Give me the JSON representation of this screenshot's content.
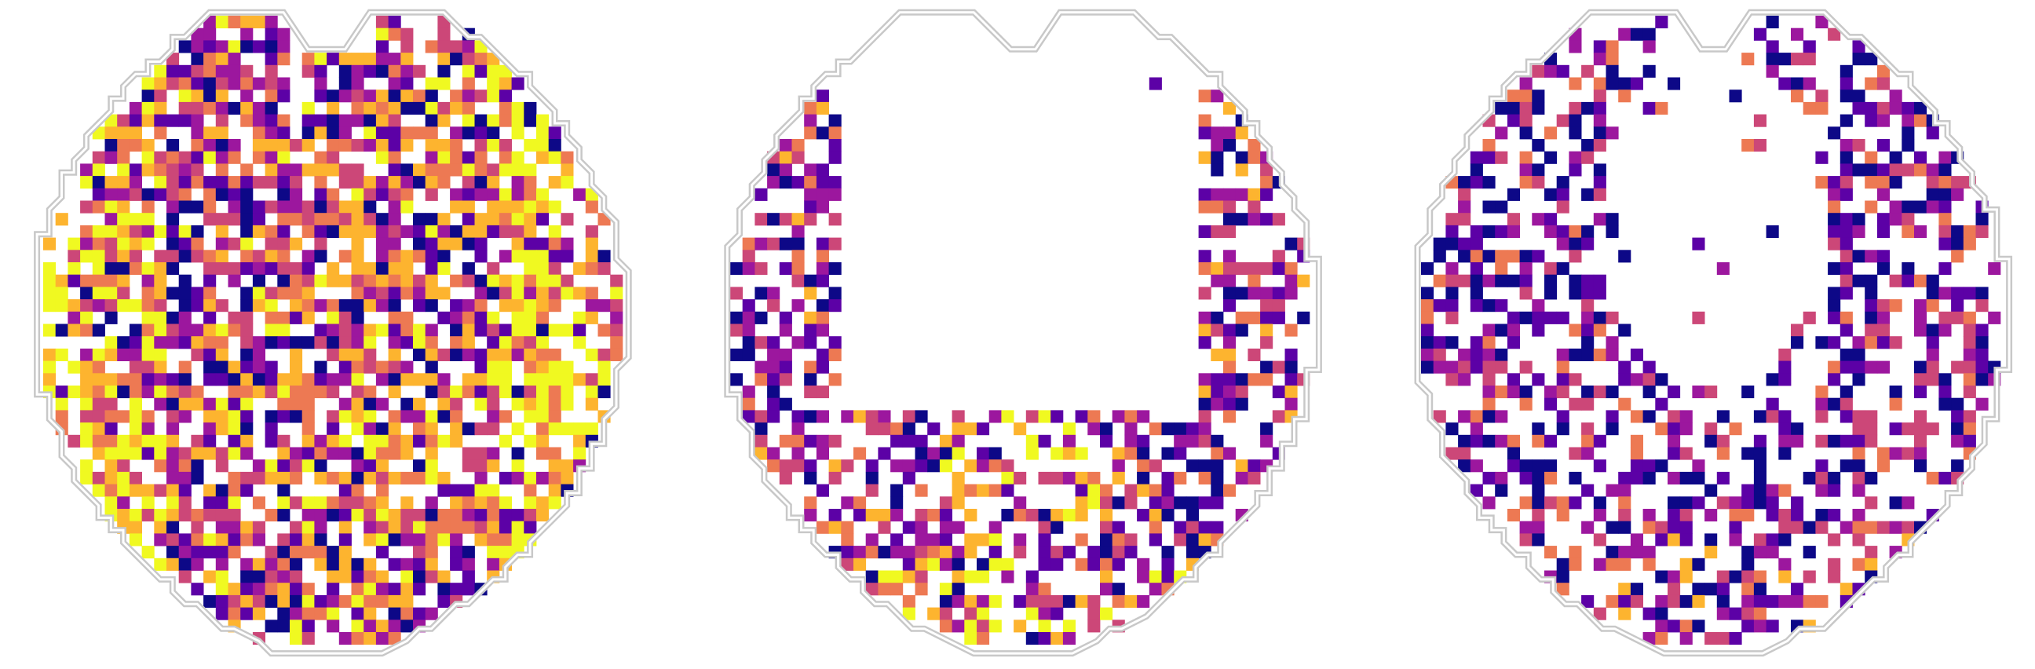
{
  "figure": {
    "kind": "brain-slice-heatmap-panels",
    "panel_count": 3,
    "colormap": [
      "#0d0887",
      "#5c01a6",
      "#9c179e",
      "#cc4778",
      "#ed7953",
      "#fdb42f",
      "#f0f921"
    ],
    "outline_color": "#c8c8c8",
    "background": "#ffffff"
  },
  "panels": [
    {
      "id": "slice-1",
      "name": "dense-activation-slice",
      "coverage": 0.8,
      "warmth": 0.58
    },
    {
      "id": "slice-2",
      "name": "cortical-rim-activation-slice",
      "coverage": 0.8,
      "warmth": 0.35
    },
    {
      "id": "slice-3",
      "name": "sparse-activation-slice",
      "coverage": 0.8,
      "warmth": 0.15
    }
  ]
}
